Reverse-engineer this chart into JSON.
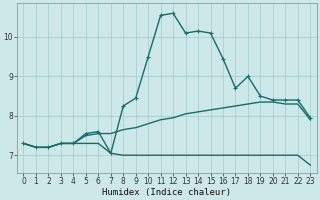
{
  "xlabel": "Humidex (Indice chaleur)",
  "background_color": "#cde8e8",
  "grid_color": "#aacece",
  "line_color": "#1a6b6b",
  "xlim": [
    -0.5,
    23.5
  ],
  "ylim": [
    6.55,
    10.85
  ],
  "x_ticks": [
    0,
    1,
    2,
    3,
    4,
    5,
    6,
    7,
    8,
    9,
    10,
    11,
    12,
    13,
    14,
    15,
    16,
    17,
    18,
    19,
    20,
    21,
    22,
    23
  ],
  "yticks": [
    7,
    8,
    9,
    10
  ],
  "series": [
    {
      "x": [
        0,
        1,
        2,
        3,
        4,
        5,
        6,
        7,
        8,
        9,
        10,
        11,
        12,
        13,
        14,
        15,
        16,
        17,
        18,
        19,
        20,
        21,
        22,
        23
      ],
      "y": [
        7.3,
        7.2,
        7.2,
        7.3,
        7.3,
        7.3,
        7.3,
        7.05,
        7.0,
        7.0,
        7.0,
        7.0,
        7.0,
        7.0,
        7.0,
        7.0,
        7.0,
        7.0,
        7.0,
        7.0,
        7.0,
        7.0,
        7.0,
        6.75
      ],
      "has_markers": false,
      "linewidth": 1.0
    },
    {
      "x": [
        0,
        1,
        2,
        3,
        4,
        5,
        6,
        7,
        8,
        9,
        10,
        11,
        12,
        13,
        14,
        15,
        16,
        17,
        18,
        19,
        20,
        21,
        22,
        23
      ],
      "y": [
        7.3,
        7.2,
        7.2,
        7.3,
        7.3,
        7.5,
        7.55,
        7.55,
        7.65,
        7.7,
        7.8,
        7.9,
        7.95,
        8.05,
        8.1,
        8.15,
        8.2,
        8.25,
        8.3,
        8.35,
        8.35,
        8.3,
        8.3,
        7.9
      ],
      "has_markers": false,
      "linewidth": 1.0
    },
    {
      "x": [
        0,
        1,
        2,
        3,
        4,
        5,
        6,
        7,
        8,
        9,
        10,
        11,
        12,
        13,
        14,
        15,
        16,
        17,
        18,
        19,
        20,
        21,
        22,
        23
      ],
      "y": [
        7.3,
        7.2,
        7.2,
        7.3,
        7.3,
        7.55,
        7.6,
        7.05,
        8.25,
        8.45,
        9.5,
        10.55,
        10.6,
        10.1,
        10.15,
        10.1,
        9.45,
        8.7,
        9.0,
        8.5,
        8.4,
        8.4,
        8.4,
        7.95
      ],
      "has_markers": true,
      "linewidth": 1.0
    }
  ]
}
